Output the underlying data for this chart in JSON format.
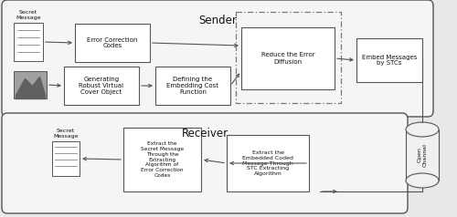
{
  "bg_color": "#e8e8e8",
  "sender_label": "Sender",
  "receiver_label": "Receiver",
  "channel_label": "Open\nChannel",
  "secret_msg_label": "Secret\nMessage",
  "secret_msg_label2": "Secret\nMessage",
  "ecc_label": "Error Correction\nCodes",
  "gen_label": "Generating\nRobust Virtual\nCover Object",
  "def_label": "Defining the\nEmbedding Cost\nFunction",
  "reduce_label": "Reduce the Error\nDiffusion",
  "embed_label": "Embed Messages\nby STCs",
  "ext_ecc_label": "Extract the\nSecret Message\nThrough the\nExtracting\nAlgorithm of\nError Correction\nCodes",
  "ext_stc_label": "Extract the\nEmbedded Coded\nMessage Through\nSTC Extracting\nAlgorithm",
  "edge_color": "#555555",
  "face_color": "#f5f5f5",
  "box_face": "#ffffff",
  "title_fontsize": 8.5,
  "label_fontsize": 5.0,
  "small_fontsize": 4.5
}
